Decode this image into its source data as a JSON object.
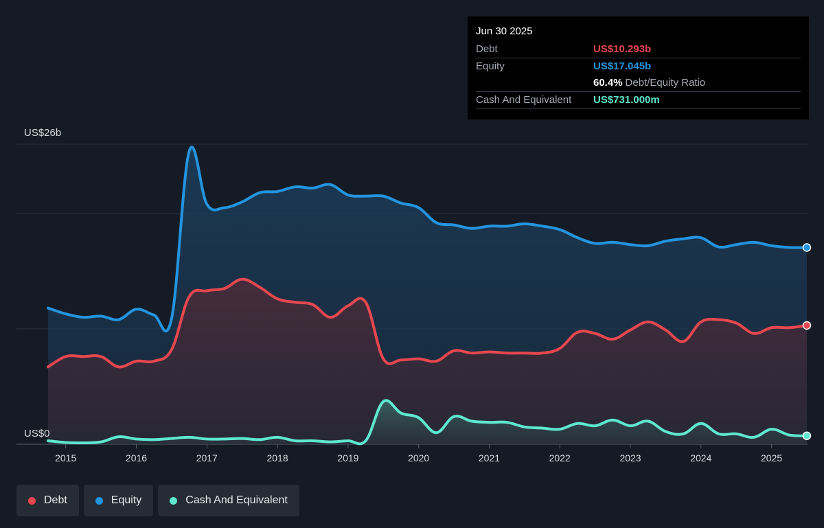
{
  "tooltip": {
    "date": "Jun 30 2025",
    "rows": [
      {
        "label": "Debt",
        "value": "US$10.293b",
        "color": "#e8474f"
      },
      {
        "label": "Equity",
        "value": "US$17.045b",
        "color": "#2394df"
      },
      {
        "label": "",
        "value": "60.4%",
        "extra": "Debt/Equity Ratio",
        "color": "#ffffff"
      },
      {
        "label": "Cash And Equivalent",
        "value": "US$731.000m",
        "color": "#5ee8cf"
      }
    ]
  },
  "legend": [
    {
      "label": "Debt",
      "color": "#e8474f"
    },
    {
      "label": "Equity",
      "color": "#2394df"
    },
    {
      "label": "Cash And Equivalent",
      "color": "#5ee8cf"
    }
  ],
  "chart_data": {
    "type": "area",
    "y_top_label": "US$26b",
    "y_bottom_label": "US$0",
    "ylim": [
      0,
      26
    ],
    "xlim": [
      2014.75,
      2025.5
    ],
    "x_ticks": [
      "2015",
      "2016",
      "2017",
      "2018",
      "2019",
      "2020",
      "2021",
      "2022",
      "2023",
      "2024",
      "2025"
    ],
    "x_tick_values": [
      2015,
      2016,
      2017,
      2018,
      2019,
      2020,
      2021,
      2022,
      2023,
      2024,
      2025
    ],
    "series": [
      {
        "name": "Equity",
        "color": "#2394df",
        "points": [
          [
            2014.75,
            11.8
          ],
          [
            2015.0,
            11.3
          ],
          [
            2015.25,
            11.0
          ],
          [
            2015.5,
            11.1
          ],
          [
            2015.75,
            10.8
          ],
          [
            2016.0,
            11.7
          ],
          [
            2016.25,
            11.2
          ],
          [
            2016.5,
            10.9
          ],
          [
            2016.75,
            25.4
          ],
          [
            2017.0,
            20.8
          ],
          [
            2017.25,
            20.5
          ],
          [
            2017.5,
            21.0
          ],
          [
            2017.75,
            21.8
          ],
          [
            2018.0,
            21.9
          ],
          [
            2018.25,
            22.3
          ],
          [
            2018.5,
            22.2
          ],
          [
            2018.75,
            22.5
          ],
          [
            2019.0,
            21.6
          ],
          [
            2019.25,
            21.5
          ],
          [
            2019.5,
            21.5
          ],
          [
            2019.75,
            20.9
          ],
          [
            2020.0,
            20.5
          ],
          [
            2020.25,
            19.2
          ],
          [
            2020.5,
            19.0
          ],
          [
            2020.75,
            18.7
          ],
          [
            2021.0,
            18.9
          ],
          [
            2021.25,
            18.9
          ],
          [
            2021.5,
            19.1
          ],
          [
            2021.75,
            18.9
          ],
          [
            2022.0,
            18.6
          ],
          [
            2022.25,
            17.9
          ],
          [
            2022.5,
            17.4
          ],
          [
            2022.75,
            17.5
          ],
          [
            2023.0,
            17.3
          ],
          [
            2023.25,
            17.2
          ],
          [
            2023.5,
            17.6
          ],
          [
            2023.75,
            17.8
          ],
          [
            2024.0,
            17.9
          ],
          [
            2024.25,
            17.1
          ],
          [
            2024.5,
            17.3
          ],
          [
            2024.75,
            17.5
          ],
          [
            2025.0,
            17.2
          ],
          [
            2025.25,
            17.05
          ],
          [
            2025.5,
            17.045
          ]
        ]
      },
      {
        "name": "Debt",
        "color": "#e8474f",
        "points": [
          [
            2014.75,
            6.7
          ],
          [
            2015.0,
            7.6
          ],
          [
            2015.25,
            7.6
          ],
          [
            2015.5,
            7.6
          ],
          [
            2015.75,
            6.7
          ],
          [
            2016.0,
            7.2
          ],
          [
            2016.25,
            7.2
          ],
          [
            2016.5,
            8.2
          ],
          [
            2016.75,
            12.8
          ],
          [
            2017.0,
            13.3
          ],
          [
            2017.25,
            13.5
          ],
          [
            2017.5,
            14.3
          ],
          [
            2017.75,
            13.6
          ],
          [
            2018.0,
            12.6
          ],
          [
            2018.25,
            12.3
          ],
          [
            2018.5,
            12.1
          ],
          [
            2018.75,
            11.0
          ],
          [
            2019.0,
            12.0
          ],
          [
            2019.25,
            12.3
          ],
          [
            2019.5,
            7.4
          ],
          [
            2019.75,
            7.3
          ],
          [
            2020.0,
            7.4
          ],
          [
            2020.25,
            7.2
          ],
          [
            2020.5,
            8.1
          ],
          [
            2020.75,
            7.9
          ],
          [
            2021.0,
            8.0
          ],
          [
            2021.25,
            7.9
          ],
          [
            2021.5,
            7.9
          ],
          [
            2021.75,
            7.9
          ],
          [
            2022.0,
            8.3
          ],
          [
            2022.25,
            9.7
          ],
          [
            2022.5,
            9.6
          ],
          [
            2022.75,
            9.1
          ],
          [
            2023.0,
            9.9
          ],
          [
            2023.25,
            10.6
          ],
          [
            2023.5,
            9.9
          ],
          [
            2023.75,
            8.9
          ],
          [
            2024.0,
            10.6
          ],
          [
            2024.25,
            10.8
          ],
          [
            2024.5,
            10.5
          ],
          [
            2024.75,
            9.6
          ],
          [
            2025.0,
            10.1
          ],
          [
            2025.25,
            10.1
          ],
          [
            2025.5,
            10.293
          ]
        ]
      },
      {
        "name": "Cash And Equivalent",
        "color": "#5ee8cf",
        "points": [
          [
            2014.75,
            0.3
          ],
          [
            2015.0,
            0.15
          ],
          [
            2015.25,
            0.12
          ],
          [
            2015.5,
            0.2
          ],
          [
            2015.75,
            0.65
          ],
          [
            2016.0,
            0.45
          ],
          [
            2016.25,
            0.4
          ],
          [
            2016.5,
            0.5
          ],
          [
            2016.75,
            0.6
          ],
          [
            2017.0,
            0.45
          ],
          [
            2017.25,
            0.45
          ],
          [
            2017.5,
            0.5
          ],
          [
            2017.75,
            0.4
          ],
          [
            2018.0,
            0.6
          ],
          [
            2018.25,
            0.3
          ],
          [
            2018.5,
            0.3
          ],
          [
            2018.75,
            0.2
          ],
          [
            2019.0,
            0.3
          ],
          [
            2019.25,
            0.3
          ],
          [
            2019.5,
            3.7
          ],
          [
            2019.75,
            2.7
          ],
          [
            2020.0,
            2.3
          ],
          [
            2020.25,
            1.0
          ],
          [
            2020.5,
            2.4
          ],
          [
            2020.75,
            2.0
          ],
          [
            2021.0,
            1.9
          ],
          [
            2021.25,
            1.9
          ],
          [
            2021.5,
            1.5
          ],
          [
            2021.75,
            1.4
          ],
          [
            2022.0,
            1.3
          ],
          [
            2022.25,
            1.8
          ],
          [
            2022.5,
            1.6
          ],
          [
            2022.75,
            2.1
          ],
          [
            2023.0,
            1.6
          ],
          [
            2023.25,
            2.0
          ],
          [
            2023.5,
            1.1
          ],
          [
            2023.75,
            0.9
          ],
          [
            2024.0,
            1.8
          ],
          [
            2024.25,
            0.9
          ],
          [
            2024.5,
            0.9
          ],
          [
            2024.75,
            0.6
          ],
          [
            2025.0,
            1.3
          ],
          [
            2025.25,
            0.8
          ],
          [
            2025.5,
            0.731
          ]
        ]
      }
    ]
  }
}
